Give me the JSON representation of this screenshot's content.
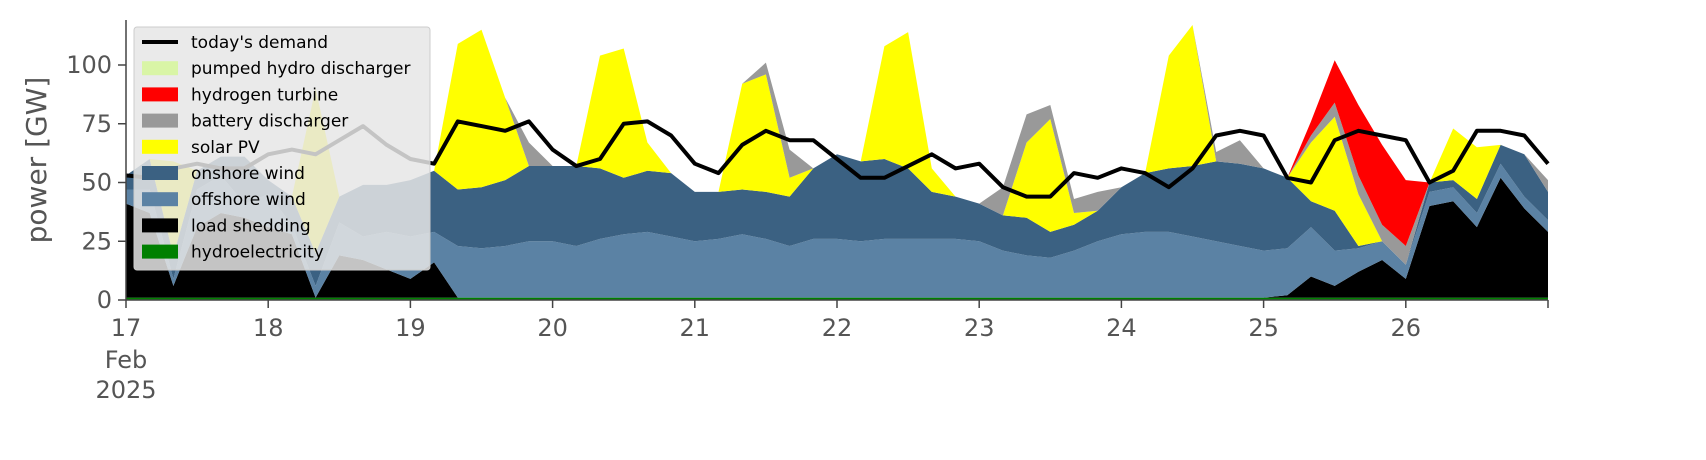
{
  "chart_data": {
    "type": "area",
    "ylabel": "power [GW]",
    "ylim": [
      0,
      120
    ],
    "xlim": [
      "2025-02-17",
      "2025-02-27"
    ],
    "x_ticks": [
      {
        "day": 17,
        "label": "17",
        "sub": [
          "Feb",
          "2025"
        ]
      },
      {
        "day": 18,
        "label": "18"
      },
      {
        "day": 19,
        "label": "19"
      },
      {
        "day": 20,
        "label": "20"
      },
      {
        "day": 21,
        "label": "21"
      },
      {
        "day": 22,
        "label": "22"
      },
      {
        "day": 23,
        "label": "23"
      },
      {
        "day": 24,
        "label": "24"
      },
      {
        "day": 25,
        "label": "25"
      },
      {
        "day": 26,
        "label": "26"
      }
    ],
    "y_ticks": [
      0,
      25,
      50,
      75,
      100
    ],
    "legend_position": "upper-left",
    "legend": [
      {
        "label": "today's demand",
        "color": "#000000",
        "kind": "line"
      },
      {
        "label": "pumped hydro discharger",
        "color": "#d9f5a6",
        "kind": "patch"
      },
      {
        "label": "hydrogen turbine",
        "color": "#ff0000",
        "kind": "patch"
      },
      {
        "label": "battery discharger",
        "color": "#999999",
        "kind": "patch"
      },
      {
        "label": "solar PV",
        "color": "#ffff00",
        "kind": "patch"
      },
      {
        "label": "onshore wind",
        "color": "#3b6182",
        "kind": "patch"
      },
      {
        "label": "offshore wind",
        "color": "#5b82a4",
        "kind": "patch"
      },
      {
        "label": "load shedding",
        "color": "#000000",
        "kind": "patch"
      },
      {
        "label": "hydroelectricity",
        "color": "#008000",
        "kind": "patch"
      }
    ],
    "x": [
      "2025-02-17 00:00",
      "2025-02-17 04:00",
      "2025-02-17 08:00",
      "2025-02-17 12:00",
      "2025-02-17 16:00",
      "2025-02-17 20:00",
      "2025-02-18 00:00",
      "2025-02-18 04:00",
      "2025-02-18 08:00",
      "2025-02-18 12:00",
      "2025-02-18 16:00",
      "2025-02-18 20:00",
      "2025-02-19 00:00",
      "2025-02-19 04:00",
      "2025-02-19 08:00",
      "2025-02-19 12:00",
      "2025-02-19 16:00",
      "2025-02-19 20:00",
      "2025-02-20 00:00",
      "2025-02-20 04:00",
      "2025-02-20 08:00",
      "2025-02-20 12:00",
      "2025-02-20 16:00",
      "2025-02-20 20:00",
      "2025-02-21 00:00",
      "2025-02-21 04:00",
      "2025-02-21 08:00",
      "2025-02-21 12:00",
      "2025-02-21 16:00",
      "2025-02-21 20:00",
      "2025-02-22 00:00",
      "2025-02-22 04:00",
      "2025-02-22 08:00",
      "2025-02-22 12:00",
      "2025-02-22 16:00",
      "2025-02-22 20:00",
      "2025-02-23 00:00",
      "2025-02-23 04:00",
      "2025-02-23 08:00",
      "2025-02-23 12:00",
      "2025-02-23 16:00",
      "2025-02-23 20:00",
      "2025-02-24 00:00",
      "2025-02-24 04:00",
      "2025-02-24 08:00",
      "2025-02-24 12:00",
      "2025-02-24 16:00",
      "2025-02-24 20:00",
      "2025-02-25 00:00",
      "2025-02-25 04:00",
      "2025-02-25 08:00",
      "2025-02-25 12:00",
      "2025-02-25 16:00",
      "2025-02-25 20:00",
      "2025-02-26 00:00",
      "2025-02-26 04:00",
      "2025-02-26 08:00",
      "2025-02-26 12:00",
      "2025-02-26 16:00",
      "2025-02-26 20:00",
      "2025-02-27 00:00"
    ],
    "series": [
      {
        "name": "hydroelectricity",
        "color": "#008000",
        "values": [
          1,
          1,
          1,
          1,
          1,
          1,
          1,
          1,
          1,
          1,
          1,
          1,
          1,
          1,
          1,
          1,
          1,
          1,
          1,
          1,
          1,
          1,
          1,
          1,
          1,
          1,
          1,
          1,
          1,
          1,
          1,
          1,
          1,
          1,
          1,
          1,
          1,
          1,
          1,
          1,
          1,
          1,
          1,
          1,
          1,
          1,
          1,
          1,
          1,
          1,
          1,
          1,
          1,
          1,
          1,
          1,
          1,
          1,
          1,
          1,
          1
        ]
      },
      {
        "name": "load shedding",
        "color": "#000000",
        "values": [
          40,
          36,
          5,
          30,
          36,
          34,
          30,
          27,
          0,
          18,
          16,
          12,
          8,
          15,
          0,
          0,
          0,
          0,
          0,
          0,
          0,
          0,
          0,
          0,
          0,
          0,
          0,
          0,
          0,
          0,
          0,
          0,
          0,
          0,
          0,
          0,
          0,
          0,
          0,
          0,
          0,
          0,
          0,
          0,
          0,
          0,
          0,
          0,
          0,
          1,
          9,
          5,
          11,
          16,
          8,
          39,
          41,
          30,
          51,
          38,
          28
        ]
      },
      {
        "name": "offshore wind",
        "color": "#5b82a4",
        "values": [
          6,
          10,
          3,
          16,
          16,
          6,
          14,
          4,
          5,
          14,
          10,
          16,
          18,
          13,
          22,
          21,
          22,
          24,
          24,
          22,
          25,
          27,
          28,
          26,
          24,
          25,
          27,
          25,
          22,
          25,
          25,
          24,
          25,
          25,
          25,
          25,
          24,
          20,
          18,
          17,
          20,
          24,
          27,
          28,
          28,
          26,
          24,
          22,
          20,
          20,
          21,
          15,
          10,
          8,
          6,
          6,
          6,
          6,
          6,
          5,
          5
        ]
      },
      {
        "name": "onshore wind",
        "color": "#3b6182",
        "values": [
          6,
          13,
          10,
          8,
          8,
          20,
          6,
          12,
          14,
          11,
          22,
          20,
          24,
          26,
          24,
          26,
          28,
          32,
          32,
          34,
          30,
          24,
          26,
          27,
          21,
          20,
          19,
          20,
          21,
          30,
          36,
          34,
          34,
          30,
          20,
          18,
          16,
          15,
          16,
          11,
          11,
          13,
          20,
          25,
          27,
          30,
          34,
          35,
          35,
          30,
          11,
          17,
          1,
          0,
          0,
          4,
          3,
          6,
          8,
          18,
          12
        ]
      },
      {
        "name": "solar PV",
        "color": "#ffff00",
        "values": [
          0,
          0,
          0,
          0,
          0,
          0,
          0,
          0,
          0,
          0,
          0,
          0,
          0,
          0,
          0,
          3,
          10,
          0,
          0,
          0,
          0,
          0,
          0,
          0,
          0,
          0,
          0,
          0,
          0,
          0,
          0,
          0,
          0,
          0,
          0,
          0,
          0,
          0,
          0,
          0,
          0,
          0,
          0,
          0,
          0,
          0,
          0,
          0,
          0,
          0,
          0,
          0,
          0,
          0,
          0,
          0,
          0,
          0,
          0,
          0,
          0
        ]
      },
      {
        "name": "battery discharger",
        "color": "#999999",
        "values": [
          0,
          0,
          0,
          0,
          0,
          0,
          0,
          0,
          0,
          0,
          0,
          0,
          0,
          0,
          0,
          0,
          0,
          0,
          0,
          0,
          0,
          0,
          0,
          0,
          0,
          0,
          0,
          0,
          0,
          0,
          0,
          0,
          0,
          0,
          0,
          0,
          0,
          0,
          0,
          0,
          0,
          0,
          0,
          0,
          0,
          0,
          0,
          0,
          0,
          0,
          0,
          0,
          0,
          0,
          0,
          0,
          0,
          0,
          0,
          0,
          0
        ]
      },
      {
        "name": "hydrogen turbine",
        "color": "#ff0000",
        "values": [
          0,
          0,
          0,
          0,
          0,
          0,
          0,
          0,
          0,
          0,
          0,
          0,
          0,
          0,
          0,
          0,
          0,
          0,
          0,
          0,
          0,
          0,
          0,
          0,
          0,
          0,
          0,
          0,
          0,
          0,
          0,
          0,
          0,
          0,
          0,
          0,
          0,
          0,
          0,
          0,
          0,
          0,
          0,
          0,
          0,
          0,
          0,
          0,
          0,
          0,
          6,
          18,
          30,
          34,
          28,
          0,
          0,
          0,
          0,
          0,
          0
        ]
      },
      {
        "name": "pumped hydro discharger",
        "color": "#d9f5a6",
        "values": [
          0,
          0,
          0,
          0,
          0,
          0,
          0,
          0,
          0,
          0,
          0,
          0,
          0,
          0,
          0,
          0,
          0,
          0,
          0,
          0,
          0,
          0,
          0,
          0,
          0,
          0,
          0,
          0,
          0,
          0,
          0,
          0,
          0,
          0,
          0,
          0,
          0,
          0,
          0,
          0,
          0,
          0,
          0,
          0,
          0,
          0,
          0,
          0,
          0,
          0,
          0,
          0,
          0,
          0,
          0,
          0,
          0,
          0,
          0,
          0,
          0
        ]
      }
    ],
    "peaks": [
      {
        "name": "solar PV",
        "values": [
          0,
          0,
          40,
          0,
          0,
          0,
          0,
          0,
          70,
          0,
          0,
          0,
          0,
          0,
          62,
          64,
          25,
          0,
          0,
          0,
          48,
          55,
          12,
          0,
          0,
          0,
          45,
          50,
          8,
          0,
          0,
          0,
          48,
          58,
          10,
          0,
          0,
          0,
          32,
          48,
          5,
          0,
          0,
          0,
          48,
          60,
          0,
          0,
          0,
          0,
          25,
          40,
          22,
          0,
          0,
          0,
          22,
          22,
          0,
          0,
          0
        ]
      },
      {
        "name": "battery discharger",
        "values": [
          0,
          0,
          0,
          0,
          0,
          0,
          0,
          0,
          0,
          0,
          0,
          0,
          0,
          0,
          0,
          0,
          0,
          10,
          0,
          0,
          0,
          0,
          0,
          0,
          0,
          0,
          0,
          5,
          12,
          0,
          0,
          0,
          0,
          0,
          0,
          0,
          0,
          12,
          12,
          6,
          6,
          8,
          0,
          0,
          0,
          0,
          4,
          10,
          0,
          0,
          3,
          6,
          8,
          7,
          8,
          0,
          0,
          0,
          0,
          0,
          5
        ]
      }
    ],
    "demand": [
      53,
      52,
      56,
      58,
      56,
      56,
      62,
      64,
      62,
      68,
      74,
      66,
      60,
      58,
      76,
      74,
      72,
      76,
      64,
      57,
      60,
      75,
      76,
      70,
      58,
      54,
      66,
      72,
      68,
      68,
      60,
      52,
      52,
      57,
      62,
      56,
      58,
      48,
      44,
      44,
      54,
      52,
      56,
      54,
      48,
      56,
      70,
      72,
      70,
      52,
      50,
      68,
      72,
      70,
      68,
      50,
      55,
      72,
      72,
      70,
      58
    ]
  }
}
